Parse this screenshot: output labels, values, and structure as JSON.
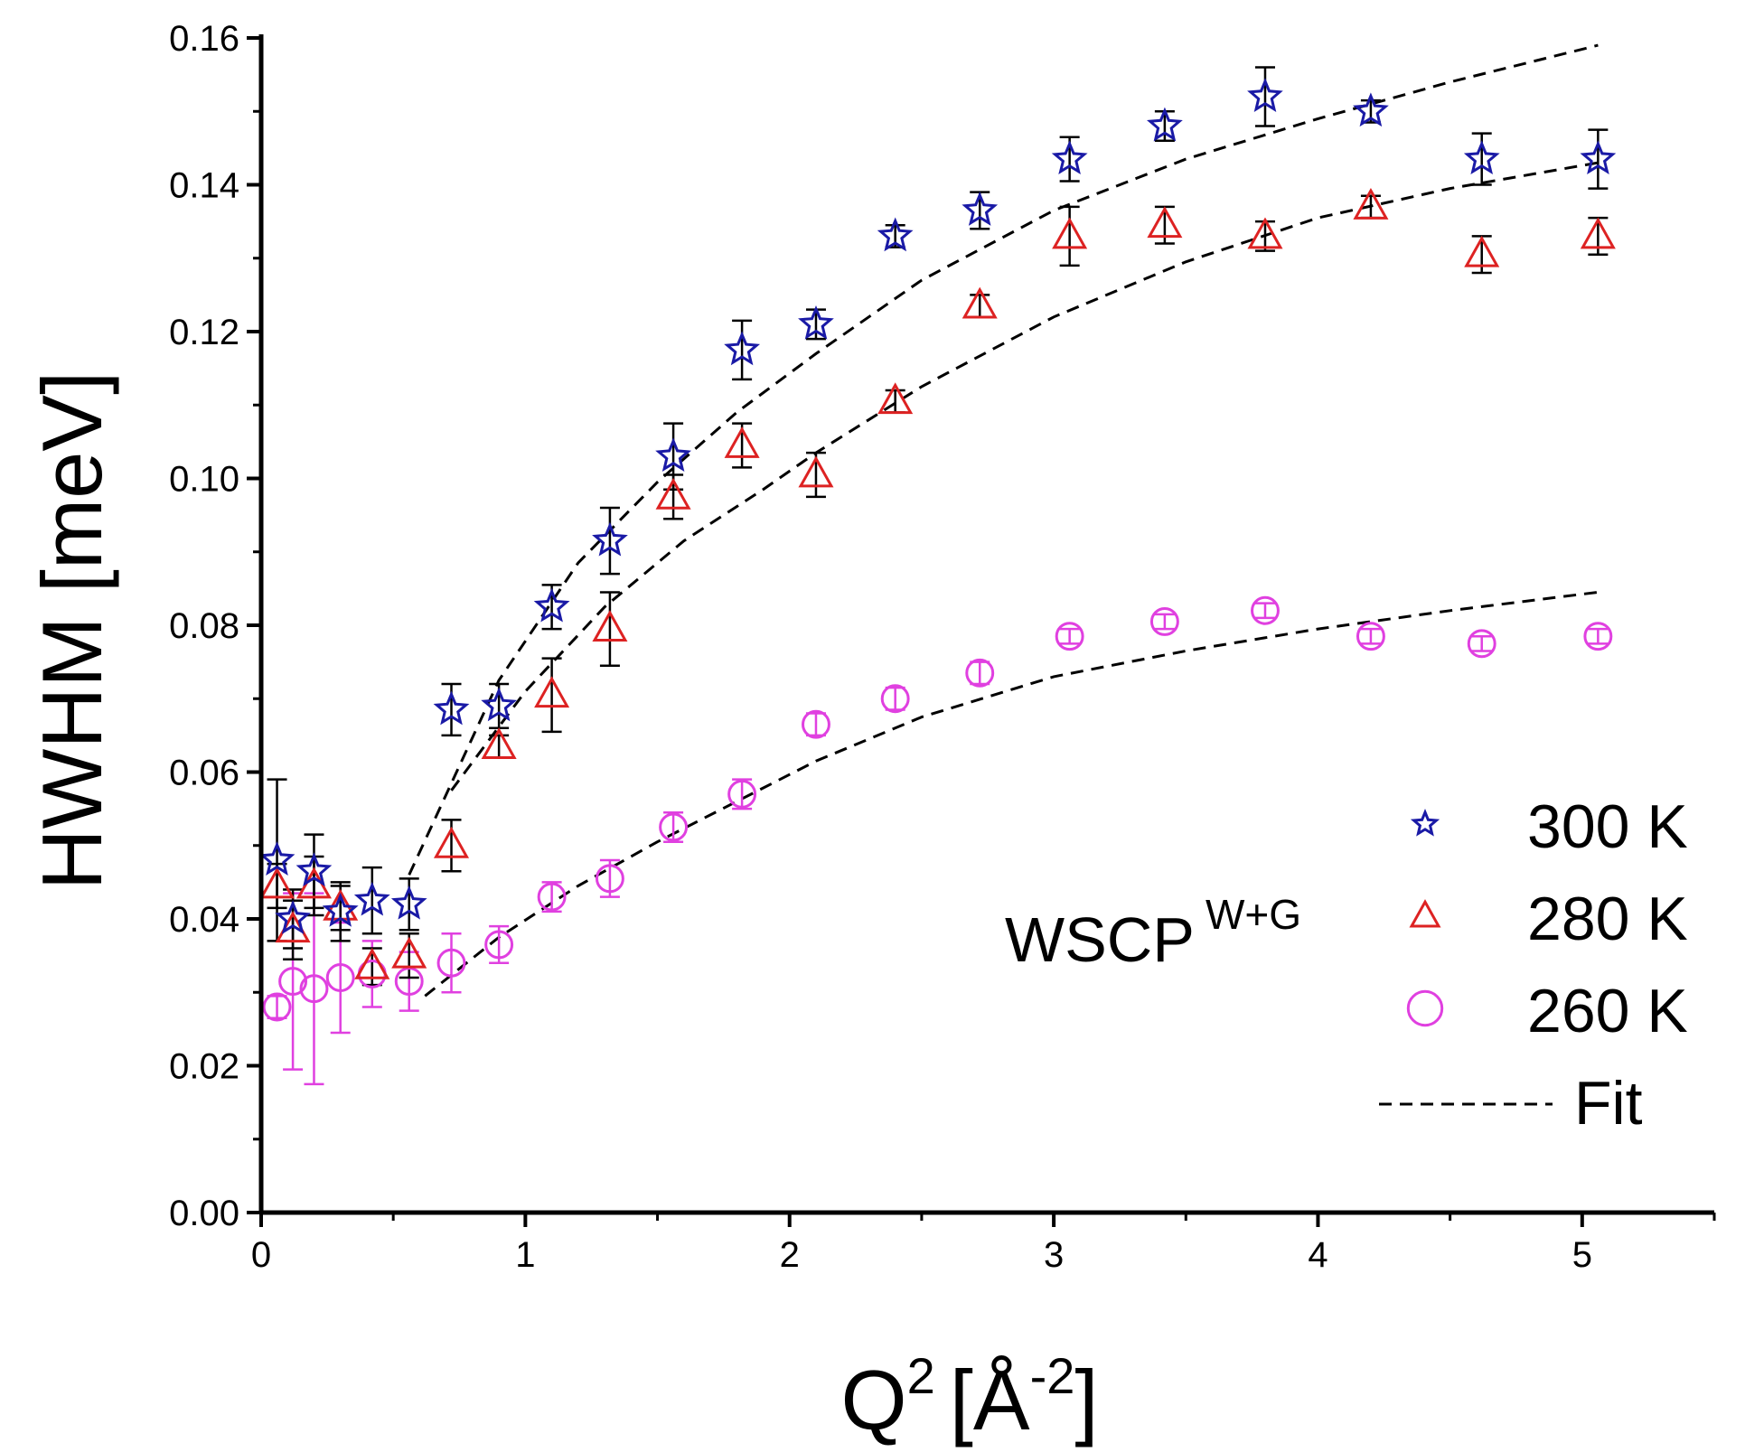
{
  "chart_data": {
    "type": "scatter",
    "title": "",
    "xlabel": "Q",
    "xlabel_sup": "2",
    "xlabel_unit_open": "[Å",
    "xlabel_unit_sup": "-2",
    "xlabel_unit_close": "]",
    "ylabel": "HWHM [meV]",
    "xlim": [
      0,
      5.5
    ],
    "ylim": [
      0,
      0.16
    ],
    "xticks": [
      0,
      1,
      2,
      3,
      4,
      5
    ],
    "xtick_labels": [
      "0",
      "1",
      "2",
      "3",
      "4",
      "5"
    ],
    "yticks": [
      0,
      0.02,
      0.04,
      0.06,
      0.08,
      0.1,
      0.12,
      0.14,
      0.16
    ],
    "ytick_labels": [
      "0.00",
      "0.02",
      "0.04",
      "0.06",
      "0.08",
      "0.10",
      "0.12",
      "0.14",
      "0.16"
    ],
    "grid": false,
    "legend_position": "bottom-right",
    "annotation": {
      "text": "WSCP",
      "sup": "W+G"
    },
    "x": [
      0.06,
      0.12,
      0.2,
      0.3,
      0.42,
      0.56,
      0.72,
      0.9,
      1.1,
      1.32,
      1.56,
      1.82,
      2.1,
      2.4,
      2.72,
      3.06,
      3.42,
      3.8,
      4.2,
      4.62,
      5.06
    ],
    "series": [
      {
        "name": "300 K",
        "marker": "star",
        "color": "#1a1aa6",
        "errcolor": "#000000",
        "values": [
          0.048,
          0.04,
          0.0465,
          0.041,
          0.0425,
          0.042,
          0.0685,
          0.069,
          0.0825,
          0.0915,
          0.103,
          0.1175,
          0.121,
          0.133,
          0.1365,
          0.1435,
          0.148,
          0.152,
          0.15,
          0.1435,
          0.1435
        ],
        "errors": [
          0.011,
          0.004,
          0.005,
          0.004,
          0.0045,
          0.0035,
          0.0035,
          0.003,
          0.003,
          0.0045,
          0.0045,
          0.004,
          0.002,
          0.0015,
          0.0025,
          0.003,
          0.002,
          0.004,
          0.0015,
          0.0035,
          0.004
        ]
      },
      {
        "name": "280 K",
        "marker": "triangle",
        "color": "#dd2222",
        "errcolor": "#000000",
        "values": [
          0.0445,
          0.0385,
          0.0445,
          0.0415,
          0.0335,
          0.035,
          0.05,
          0.0635,
          0.0705,
          0.0795,
          0.0975,
          0.1045,
          0.1005,
          0.1105,
          0.1235,
          0.133,
          0.1345,
          0.133,
          0.137,
          0.1305,
          0.133
        ],
        "errors": [
          0.003,
          0.004,
          0.004,
          0.003,
          0.0025,
          0.003,
          0.0035,
          0.0015,
          0.005,
          0.005,
          0.003,
          0.003,
          0.003,
          0.0015,
          0.0015,
          0.004,
          0.0025,
          0.002,
          0.0015,
          0.0025,
          0.0025
        ]
      },
      {
        "name": "260 K",
        "marker": "circle",
        "color": "#e040e0",
        "errcolor": "#e040e0",
        "values": [
          0.028,
          0.0315,
          0.0305,
          0.032,
          0.0325,
          0.0315,
          0.034,
          0.0365,
          0.043,
          0.0455,
          0.0525,
          0.057,
          0.0665,
          0.07,
          0.0735,
          0.0785,
          0.0805,
          0.082,
          0.0785,
          0.0775,
          0.0785
        ],
        "errors": [
          0.0015,
          0.012,
          0.013,
          0.0075,
          0.0045,
          0.004,
          0.004,
          0.0025,
          0.002,
          0.0025,
          0.002,
          0.002,
          0.0015,
          0.0015,
          0.0015,
          0.001,
          0.001,
          0.001,
          0.001,
          0.001,
          0.001
        ]
      }
    ],
    "fit": {
      "name": "Fit",
      "style": "dashed",
      "color": "#000000",
      "curves": [
        {
          "for": "300 K",
          "x": [
            0.56,
            0.9,
            1.2,
            1.5,
            1.8,
            2.1,
            2.5,
            3.0,
            3.5,
            4.0,
            4.5,
            5.06
          ],
          "y": [
            0.046,
            0.0725,
            0.0885,
            0.0995,
            0.109,
            0.117,
            0.127,
            0.1365,
            0.1435,
            0.149,
            0.154,
            0.159
          ]
        },
        {
          "for": "280 K",
          "x": [
            0.72,
            1.0,
            1.3,
            1.6,
            1.9,
            2.1,
            2.5,
            3.0,
            3.5,
            4.0,
            4.5,
            5.06
          ],
          "y": [
            0.0575,
            0.071,
            0.0825,
            0.0915,
            0.0985,
            0.1035,
            0.1125,
            0.122,
            0.1295,
            0.1355,
            0.1395,
            0.143
          ]
        },
        {
          "for": "260 K",
          "x": [
            0.62,
            0.9,
            1.2,
            1.5,
            1.8,
            2.1,
            2.5,
            3.0,
            3.5,
            4.0,
            4.5,
            5.06
          ],
          "y": [
            0.0295,
            0.0375,
            0.0445,
            0.0505,
            0.056,
            0.0615,
            0.0675,
            0.073,
            0.0765,
            0.0795,
            0.082,
            0.0845
          ]
        }
      ]
    }
  }
}
